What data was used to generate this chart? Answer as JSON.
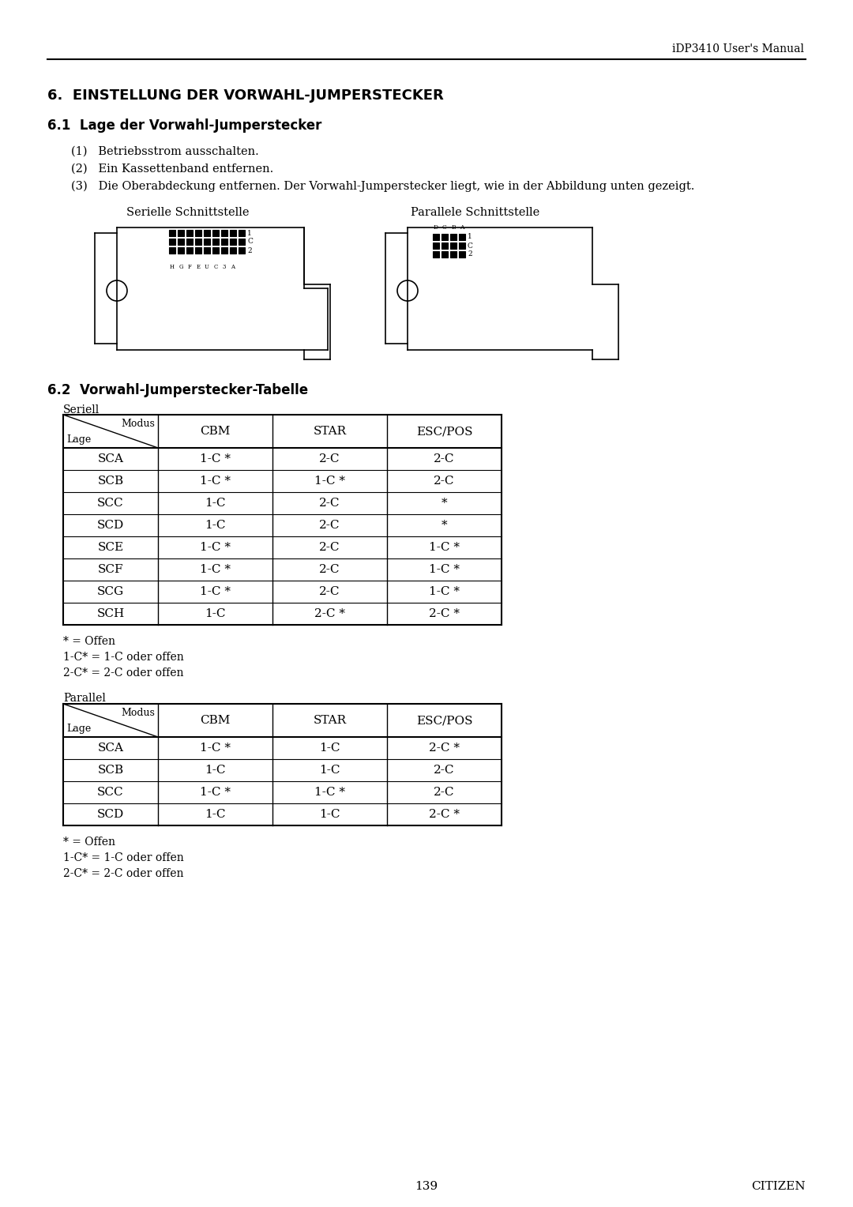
{
  "page_header": "iDP3410 User's Manual",
  "section_title": "6.  EINSTELLUNG DER VORWAHL-JUMPERSTECKER",
  "subsection_61": "6.1  Lage der Vorwahl-Jumperstecker",
  "items_61": [
    "(1)   Betriebsstrom ausschalten.",
    "(2)   Ein Kassettenband entfernen.",
    "(3)   Die Oberabdeckung entfernen. Der Vorwahl-Jumperstecker liegt, wie in der Abbildung unten gezeigt."
  ],
  "label_serielle": "Serielle Schnittstelle",
  "label_parallele": "Parallele Schnittstelle",
  "subsection_62": "6.2  Vorwahl-Jumperstecker-Tabelle",
  "seriell_label": "Seriell",
  "seriell_header": [
    "Modus/Lage",
    "CBM",
    "STAR",
    "ESC/POS"
  ],
  "seriell_rows": [
    [
      "SCA",
      "1-C *",
      "2-C",
      "2-C"
    ],
    [
      "SCB",
      "1-C *",
      "1-C *",
      "2-C"
    ],
    [
      "SCC",
      "1-C",
      "2-C",
      "*"
    ],
    [
      "SCD",
      "1-C",
      "2-C",
      "*"
    ],
    [
      "SCE",
      "1-C *",
      "2-C",
      "1-C *"
    ],
    [
      "SCF",
      "1-C *",
      "2-C",
      "1-C *"
    ],
    [
      "SCG",
      "1-C *",
      "2-C",
      "1-C *"
    ],
    [
      "SCH",
      "1-C",
      "2-C *",
      "2-C *"
    ]
  ],
  "seriell_notes": [
    "* = Offen",
    "1-C* = 1-C oder offen",
    "2-C* = 2-C oder offen"
  ],
  "parallel_label": "Parallel",
  "parallel_header": [
    "Modus/Lage",
    "CBM",
    "STAR",
    "ESC/POS"
  ],
  "parallel_rows": [
    [
      "SCA",
      "1-C *",
      "1-C",
      "2-C *"
    ],
    [
      "SCB",
      "1-C",
      "1-C",
      "2-C"
    ],
    [
      "SCC",
      "1-C *",
      "1-C *",
      "2-C"
    ],
    [
      "SCD",
      "1-C",
      "1-C",
      "2-C *"
    ]
  ],
  "parallel_notes": [
    "* = Offen",
    "1-C* = 1-C oder offen",
    "2-C* = 2-C oder offen"
  ],
  "page_number": "139",
  "page_footer": "CITIZEN"
}
